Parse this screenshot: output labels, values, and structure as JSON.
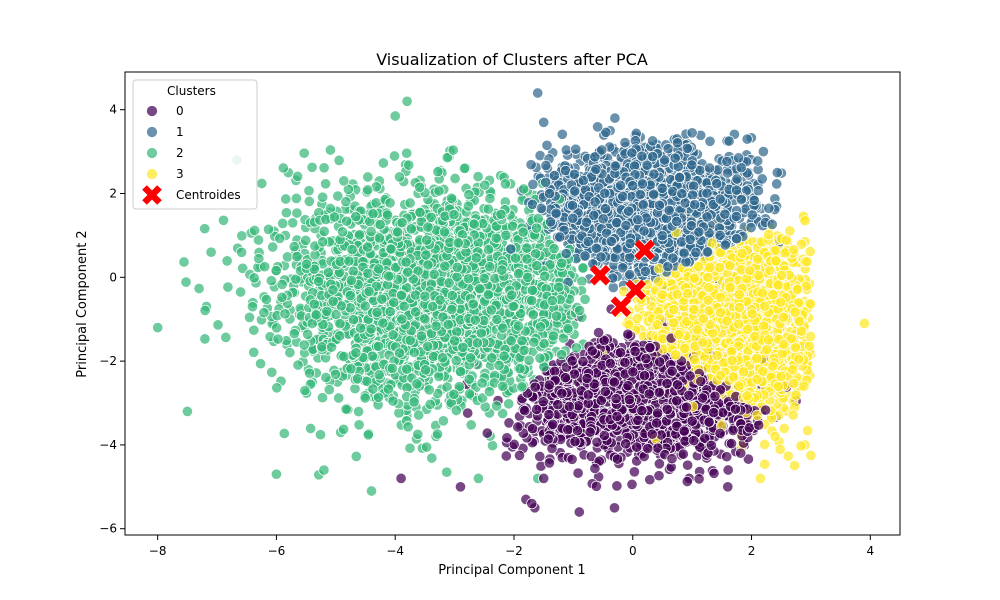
{
  "chart_data": {
    "type": "scatter",
    "title": "Visualization of Clusters after PCA",
    "xlabel": "Principal Component 1",
    "ylabel": "Principal Component 2",
    "xlim": [
      -8.55,
      4.5
    ],
    "ylim": [
      -6.15,
      4.9
    ],
    "xticks": [
      -8,
      -6,
      -4,
      -2,
      0,
      2,
      4
    ],
    "yticks": [
      -6,
      -4,
      -2,
      0,
      2,
      4
    ],
    "grid": false,
    "legend": {
      "title": "Clusters",
      "placement": "top-left",
      "entries": [
        "0",
        "1",
        "2",
        "3",
        "Centroides"
      ]
    },
    "series": [
      {
        "name": "0",
        "color": "#440154",
        "count": 2000,
        "center": [
          0.2,
          -2.8
        ],
        "spread": [
          1.0,
          0.7
        ],
        "x_range": [
          -4.0,
          2.9
        ],
        "y_range": [
          -5.6,
          -0.6
        ],
        "outliers": [
          [
            -0.9,
            -5.6
          ],
          [
            -1.7,
            -5.4
          ],
          [
            -1.8,
            -5.3
          ],
          [
            -1.5,
            -4.8
          ],
          [
            -2.9,
            -5.0
          ],
          [
            -3.9,
            -4.8
          ],
          [
            0.95,
            -4.8
          ],
          [
            1.6,
            -5.0
          ],
          [
            -1.65,
            -5.5
          ]
        ]
      },
      {
        "name": "1",
        "color": "#31688e",
        "count": 2000,
        "center": [
          0.2,
          1.5
        ],
        "spread": [
          0.9,
          0.8
        ],
        "x_range": [
          -2.6,
          2.6
        ],
        "y_range": [
          -0.3,
          3.6
        ],
        "outliers": [
          [
            -1.6,
            4.4
          ],
          [
            -1.5,
            3.7
          ],
          [
            -0.3,
            3.8
          ],
          [
            2.2,
            3.0
          ],
          [
            1.0,
            3.45
          ]
        ]
      },
      {
        "name": "2",
        "color": "#35b779",
        "count": 2600,
        "center": [
          -3.2,
          -0.4
        ],
        "spread": [
          1.4,
          1.3
        ],
        "x_range": [
          -7.6,
          -0.8
        ],
        "y_range": [
          -4.9,
          3.1
        ],
        "outliers": [
          [
            -8.0,
            -1.2
          ],
          [
            -7.5,
            -3.2
          ],
          [
            -7.1,
            0.6
          ],
          [
            -3.8,
            4.2
          ],
          [
            -4.0,
            3.85
          ],
          [
            -5.8,
            2.5
          ],
          [
            -4.4,
            -5.1
          ],
          [
            -2.6,
            -4.8
          ],
          [
            -6.0,
            -4.7
          ],
          [
            -5.2,
            -4.6
          ],
          [
            -1.6,
            -4.8
          ]
        ]
      },
      {
        "name": "3",
        "color": "#fde725",
        "count": 2000,
        "center": [
          1.6,
          -1.2
        ],
        "spread": [
          0.75,
          1.1
        ],
        "x_range": [
          -0.6,
          3.0
        ],
        "y_range": [
          -4.8,
          1.5
        ],
        "outliers": [
          [
            3.9,
            -1.1
          ],
          [
            3.0,
            -4.25
          ],
          [
            2.9,
            -4.0
          ],
          [
            2.15,
            -4.8
          ],
          [
            2.9,
            0.85
          ],
          [
            2.9,
            1.35
          ]
        ]
      }
    ],
    "centroids": {
      "name": "Centroides",
      "color": "#ff0000",
      "points": [
        [
          -0.55,
          0.05
        ],
        [
          0.2,
          0.65
        ],
        [
          0.05,
          -0.3
        ],
        [
          -0.2,
          -0.7
        ]
      ]
    }
  }
}
